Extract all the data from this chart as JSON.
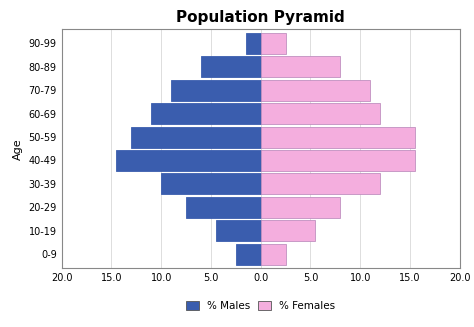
{
  "title": "Population Pyramid",
  "age_groups": [
    "0-9",
    "10-19",
    "20-29",
    "30-39",
    "40-49",
    "50-59",
    "60-69",
    "70-79",
    "80-89",
    "90-99"
  ],
  "males": [
    2.5,
    4.5,
    7.5,
    10.0,
    14.5,
    13.0,
    11.0,
    9.0,
    6.0,
    1.5
  ],
  "females": [
    2.5,
    5.5,
    8.0,
    12.0,
    15.5,
    15.5,
    12.0,
    11.0,
    8.0,
    2.5
  ],
  "male_color": "#3A5DAE",
  "female_color": "#F4AEDE",
  "male_edge_color": "#3A5DAE",
  "female_edge_color": "#C090C0",
  "xlim": [
    -20,
    20
  ],
  "xticks": [
    -20,
    -15,
    -10,
    -5,
    0,
    5,
    10,
    15,
    20
  ],
  "xtick_labels": [
    "20.0",
    "15.0",
    "10.0",
    "5.0",
    "0.0",
    "5.0",
    "10.0",
    "15.0",
    "20.0"
  ],
  "ylabel": "Age",
  "bar_height": 0.9,
  "title_fontsize": 11,
  "tick_fontsize": 7,
  "legend_labels": [
    "% Males",
    "% Females"
  ],
  "background_color": "#ffffff"
}
